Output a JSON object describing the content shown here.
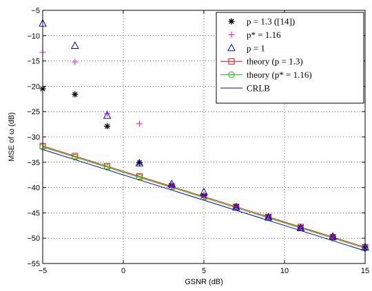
{
  "chart_data": {
    "type": "scatter",
    "xlabel": "GSNR (dB)",
    "ylabel": "MSE of ω (dB)",
    "xlim": [
      -5,
      15
    ],
    "ylim": [
      -55,
      -5
    ],
    "xticks": [
      -5,
      0,
      5,
      10,
      15
    ],
    "yticks": [
      -5,
      -10,
      -15,
      -20,
      -25,
      -30,
      -35,
      -40,
      -45,
      -50,
      -55
    ],
    "grid": true,
    "legend_position": "top-right",
    "series": [
      {
        "name": "p = 1.3 ([14])",
        "style": "marker",
        "marker": "asterisk",
        "color": "#000000",
        "x": [
          -5,
          -3,
          -1,
          1,
          3,
          5,
          7,
          9,
          11,
          13,
          15
        ],
        "y": [
          -20.5,
          -21.6,
          -27.9,
          -35.1,
          -39.6,
          -41.6,
          -43.8,
          -45.8,
          -47.9,
          -49.8,
          -51.9
        ]
      },
      {
        "name": "p* = 1.16",
        "style": "marker",
        "marker": "plus",
        "color": "#ff00ff",
        "x": [
          -5,
          -3,
          -1,
          1,
          3,
          5,
          7,
          9,
          11,
          13,
          15
        ],
        "y": [
          -13.3,
          -15.2,
          -25.4,
          -27.4,
          -39.7,
          -41.7,
          -43.8,
          -45.8,
          -47.9,
          -49.8,
          -51.9
        ]
      },
      {
        "name": "p = 1",
        "style": "marker",
        "marker": "triangle",
        "color": "#0000ff",
        "x": [
          -5,
          -3,
          -1,
          1,
          3,
          5,
          7,
          9,
          11,
          13,
          15
        ],
        "y": [
          -7.6,
          -12.0,
          -25.8,
          -35.2,
          -39.3,
          -40.9,
          -43.9,
          -45.9,
          -48.0,
          -49.7,
          -51.8
        ]
      },
      {
        "name": "theory (p = 1.3)",
        "style": "line",
        "marker": "square",
        "color": "#ff0000",
        "x": [
          -5,
          -3,
          -1,
          1,
          3,
          5,
          7,
          9,
          11,
          13,
          15
        ],
        "y": [
          -31.8,
          -33.8,
          -35.8,
          -37.8,
          -39.8,
          -41.8,
          -43.8,
          -45.8,
          -47.8,
          -49.8,
          -51.8
        ]
      },
      {
        "name": "theory (p* = 1.16)",
        "style": "line",
        "marker": "circle",
        "color": "#00cc00",
        "x": [
          -5,
          -3,
          -1,
          1,
          3,
          5,
          7,
          9,
          11,
          13,
          15
        ],
        "y": [
          -32.0,
          -34.0,
          -36.0,
          -38.0,
          -40.0,
          -42.0,
          -44.0,
          -46.0,
          -48.0,
          -50.0,
          -52.0
        ]
      },
      {
        "name": "CRLB",
        "style": "line",
        "marker": "none",
        "color": "#0000ff",
        "x": [
          -5,
          15
        ],
        "y": [
          -32.5,
          -52.5
        ]
      }
    ]
  }
}
